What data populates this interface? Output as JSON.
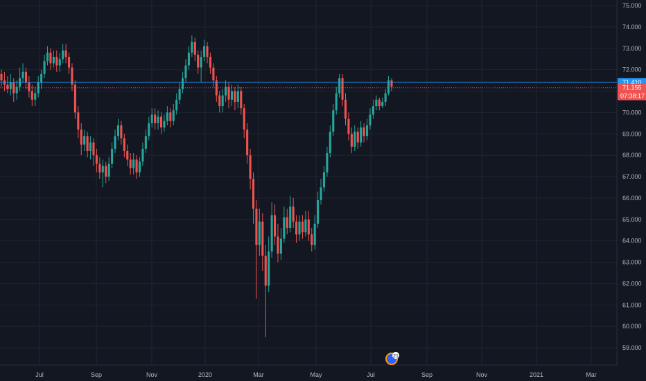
{
  "chart_data": {
    "type": "candlestick",
    "x_ticks": [
      "Jul",
      "Sep",
      "Nov",
      "2020",
      "Mar",
      "May",
      "Jul",
      "Sep",
      "Nov",
      "2021",
      "Mar"
    ],
    "y_ticks": [
      "75.000",
      "74.000",
      "73.000",
      "72.000",
      "71.000",
      "70.000",
      "69.000",
      "68.000",
      "67.000",
      "66.000",
      "65.000",
      "64.000",
      "63.000",
      "62.000",
      "61.000",
      "60.000",
      "59.000"
    ],
    "ylim": [
      58,
      75.3
    ],
    "grid": true,
    "horizontal_line": {
      "value": 71.41,
      "label": "71.410"
    },
    "last_price": {
      "value": 71.155,
      "label": "71.155",
      "countdown": "07:38:17"
    },
    "badge_number": "21",
    "candles": [
      [
        71.8,
        71.5,
        72.0,
        71.2
      ],
      [
        71.5,
        71.3,
        71.9,
        71.0
      ],
      [
        71.3,
        71.1,
        71.7,
        70.9
      ],
      [
        71.1,
        71.4,
        71.8,
        70.8
      ],
      [
        71.4,
        70.9,
        71.6,
        70.5
      ],
      [
        70.9,
        71.2,
        71.5,
        70.6
      ],
      [
        71.2,
        71.6,
        72.1,
        71.0
      ],
      [
        71.6,
        71.9,
        72.3,
        71.4
      ],
      [
        71.9,
        71.4,
        72.1,
        71.1
      ],
      [
        71.4,
        71.0,
        71.7,
        70.7
      ],
      [
        71.0,
        70.6,
        71.3,
        70.3
      ],
      [
        70.6,
        70.9,
        71.2,
        70.3
      ],
      [
        70.9,
        71.4,
        71.7,
        70.7
      ],
      [
        71.4,
        71.8,
        72.0,
        71.1
      ],
      [
        71.8,
        72.4,
        72.7,
        71.6
      ],
      [
        72.4,
        72.8,
        73.1,
        72.2
      ],
      [
        72.8,
        72.3,
        73.0,
        72.0
      ],
      [
        72.3,
        72.6,
        72.9,
        72.1
      ],
      [
        72.6,
        72.2,
        72.9,
        71.9
      ],
      [
        72.2,
        72.5,
        72.8,
        71.9
      ],
      [
        72.5,
        72.9,
        73.2,
        72.3
      ],
      [
        72.9,
        72.6,
        73.2,
        72.3
      ],
      [
        72.6,
        72.1,
        72.8,
        71.8
      ],
      [
        72.1,
        71.3,
        72.3,
        71.0
      ],
      [
        71.3,
        70.0,
        71.5,
        69.7
      ],
      [
        70.0,
        69.2,
        70.3,
        68.8
      ],
      [
        69.2,
        68.5,
        69.5,
        68.0
      ],
      [
        68.5,
        68.9,
        69.2,
        68.2
      ],
      [
        68.9,
        68.2,
        69.1,
        67.9
      ],
      [
        68.2,
        68.6,
        68.9,
        67.8
      ],
      [
        68.6,
        68.0,
        68.8,
        67.5
      ],
      [
        68.0,
        67.6,
        68.3,
        67.2
      ],
      [
        67.6,
        67.2,
        67.9,
        66.9
      ],
      [
        67.2,
        67.5,
        67.8,
        66.5
      ],
      [
        67.5,
        67.0,
        67.7,
        66.7
      ],
      [
        67.0,
        67.6,
        67.9,
        66.8
      ],
      [
        67.6,
        68.3,
        68.6,
        67.4
      ],
      [
        68.3,
        68.9,
        69.2,
        68.1
      ],
      [
        68.9,
        69.4,
        69.7,
        68.7
      ],
      [
        69.4,
        68.8,
        69.6,
        68.5
      ],
      [
        68.8,
        68.2,
        69.0,
        67.9
      ],
      [
        68.2,
        67.8,
        68.5,
        67.5
      ],
      [
        67.8,
        67.4,
        68.1,
        67.1
      ],
      [
        67.4,
        67.8,
        68.1,
        67.1
      ],
      [
        67.8,
        67.2,
        68.0,
        66.9
      ],
      [
        67.2,
        67.7,
        67.9,
        67.0
      ],
      [
        67.7,
        68.3,
        68.6,
        67.5
      ],
      [
        68.3,
        68.9,
        69.2,
        68.1
      ],
      [
        68.9,
        69.5,
        69.8,
        68.7
      ],
      [
        69.5,
        69.9,
        70.2,
        69.3
      ],
      [
        69.9,
        69.5,
        70.2,
        69.2
      ],
      [
        69.5,
        69.8,
        70.1,
        69.2
      ],
      [
        69.8,
        69.3,
        70.0,
        69.0
      ],
      [
        69.3,
        69.6,
        69.9,
        69.1
      ],
      [
        69.6,
        70.0,
        70.3,
        69.4
      ],
      [
        70.0,
        69.6,
        70.2,
        69.3
      ],
      [
        69.6,
        70.1,
        70.4,
        69.4
      ],
      [
        70.1,
        70.6,
        70.9,
        69.9
      ],
      [
        70.6,
        71.1,
        71.4,
        70.4
      ],
      [
        71.1,
        71.6,
        71.9,
        70.9
      ],
      [
        71.6,
        72.2,
        72.5,
        71.4
      ],
      [
        72.2,
        72.8,
        73.1,
        72.0
      ],
      [
        72.8,
        73.3,
        73.6,
        72.6
      ],
      [
        73.3,
        72.7,
        73.5,
        72.4
      ],
      [
        72.7,
        72.1,
        72.9,
        71.8
      ],
      [
        72.1,
        72.6,
        72.9,
        71.4
      ],
      [
        72.6,
        73.1,
        73.4,
        72.4
      ],
      [
        73.1,
        72.6,
        73.3,
        72.3
      ],
      [
        72.6,
        72.1,
        72.8,
        71.8
      ],
      [
        72.1,
        71.5,
        72.3,
        71.2
      ],
      [
        71.5,
        70.8,
        71.7,
        70.5
      ],
      [
        70.8,
        70.3,
        71.0,
        70.0
      ],
      [
        70.3,
        70.8,
        71.1,
        70.0
      ],
      [
        70.8,
        71.2,
        71.5,
        70.5
      ],
      [
        71.2,
        70.6,
        71.4,
        70.2
      ],
      [
        70.6,
        71.0,
        71.3,
        70.3
      ],
      [
        71.0,
        70.5,
        71.2,
        70.1
      ],
      [
        70.5,
        71.0,
        71.3,
        70.2
      ],
      [
        71.0,
        70.2,
        71.2,
        69.9
      ],
      [
        70.2,
        69.2,
        70.4,
        68.8
      ],
      [
        69.2,
        68.0,
        69.5,
        67.6
      ],
      [
        68.0,
        66.9,
        68.3,
        66.4
      ],
      [
        66.9,
        65.5,
        67.2,
        64.8
      ],
      [
        65.5,
        63.8,
        65.9,
        61.3
      ],
      [
        63.8,
        64.9,
        65.5,
        63.3
      ],
      [
        64.9,
        63.3,
        65.3,
        62.6
      ],
      [
        63.3,
        61.9,
        63.8,
        59.5
      ],
      [
        61.9,
        63.5,
        64.2,
        61.6
      ],
      [
        63.5,
        65.2,
        65.8,
        63.2
      ],
      [
        65.2,
        64.2,
        65.7,
        63.8
      ],
      [
        64.2,
        63.4,
        64.8,
        63.0
      ],
      [
        63.4,
        64.1,
        64.6,
        63.1
      ],
      [
        64.1,
        65.1,
        65.6,
        63.9
      ],
      [
        65.1,
        64.6,
        65.5,
        64.3
      ],
      [
        64.6,
        65.6,
        66.1,
        64.4
      ],
      [
        65.6,
        64.9,
        66.0,
        64.6
      ],
      [
        64.9,
        64.3,
        65.2,
        63.9
      ],
      [
        64.3,
        64.9,
        65.2,
        64.0
      ],
      [
        64.9,
        64.4,
        65.2,
        64.1
      ],
      [
        64.4,
        65.0,
        65.4,
        64.2
      ],
      [
        65.0,
        64.3,
        65.4,
        64.0
      ],
      [
        64.3,
        63.8,
        64.6,
        63.5
      ],
      [
        63.8,
        64.8,
        65.2,
        63.6
      ],
      [
        64.8,
        65.9,
        66.3,
        64.6
      ],
      [
        65.9,
        66.5,
        66.9,
        65.7
      ],
      [
        66.5,
        67.2,
        67.5,
        66.3
      ],
      [
        67.2,
        68.1,
        68.4,
        67.0
      ],
      [
        68.1,
        69.1,
        69.4,
        67.9
      ],
      [
        69.1,
        70.1,
        70.4,
        68.9
      ],
      [
        70.1,
        70.9,
        71.2,
        69.9
      ],
      [
        70.9,
        71.6,
        71.8,
        70.7
      ],
      [
        71.6,
        70.6,
        71.8,
        70.3
      ],
      [
        70.6,
        69.7,
        70.9,
        69.4
      ],
      [
        69.7,
        69.0,
        70.0,
        68.7
      ],
      [
        69.0,
        68.4,
        69.3,
        68.1
      ],
      [
        68.4,
        69.1,
        69.4,
        68.2
      ],
      [
        69.1,
        68.6,
        69.3,
        68.3
      ],
      [
        68.6,
        69.3,
        69.6,
        68.4
      ],
      [
        69.3,
        68.9,
        69.5,
        68.6
      ],
      [
        68.9,
        69.4,
        69.7,
        68.7
      ],
      [
        69.4,
        69.9,
        70.2,
        69.2
      ],
      [
        69.9,
        70.3,
        70.6,
        69.7
      ],
      [
        70.3,
        70.6,
        70.8,
        70.1
      ],
      [
        70.6,
        70.3,
        70.7,
        70.1
      ],
      [
        70.3,
        70.5,
        70.7,
        70.2
      ],
      [
        70.5,
        70.9,
        71.1,
        70.3
      ],
      [
        70.9,
        71.5,
        71.7,
        70.8
      ],
      [
        71.5,
        71.2,
        71.6,
        71.0
      ]
    ]
  },
  "colors": {
    "background": "#131722",
    "grid": "#1f2431",
    "axis_text": "#b2b5be",
    "up": "#26a69a",
    "down": "#ef5350",
    "hline": "#2196f3",
    "price_line": "#ef5350"
  }
}
